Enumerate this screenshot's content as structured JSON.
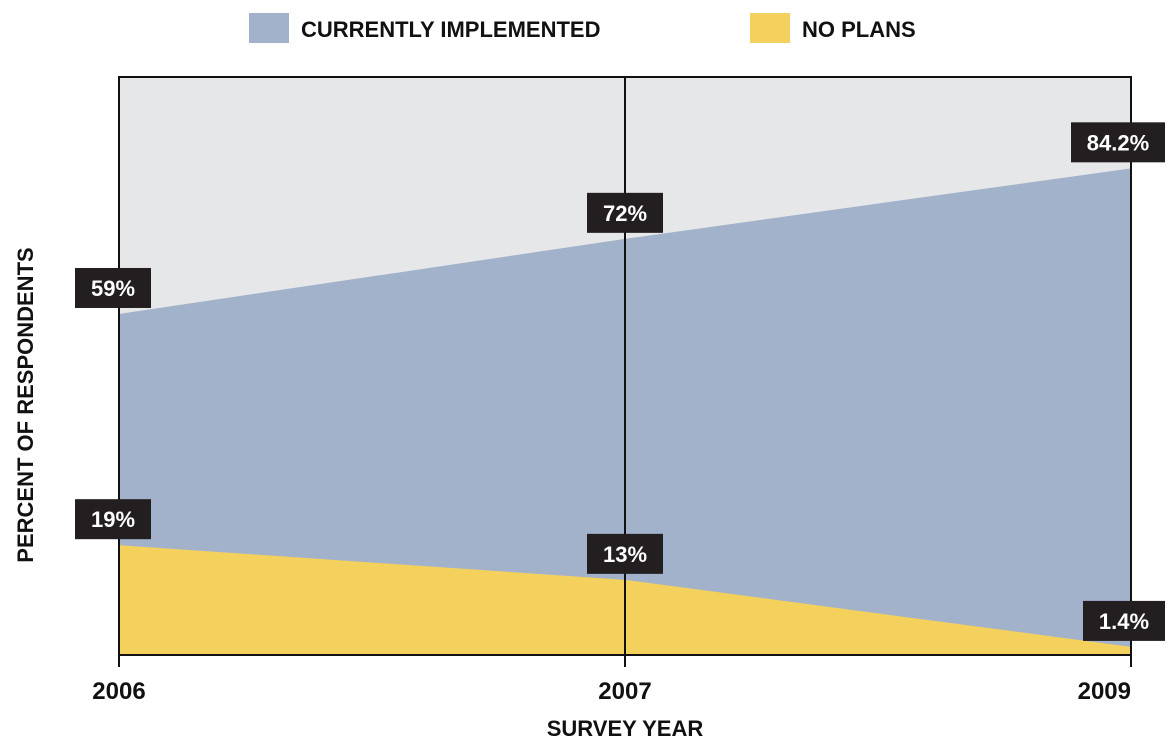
{
  "chart_data": {
    "type": "area",
    "categories": [
      "2006",
      "2007",
      "2009"
    ],
    "series": [
      {
        "name": "CURRENTLY IMPLEMENTED",
        "values": [
          59,
          72,
          84.2
        ],
        "labels": [
          "59%",
          "72%",
          "84.2%"
        ],
        "color": "#a2b2cb"
      },
      {
        "name": "NO PLANS",
        "values": [
          19,
          13,
          1.4
        ],
        "labels": [
          "19%",
          "13%",
          "1.4%"
        ],
        "color": "#f4d15c"
      }
    ],
    "title": "",
    "xlabel": "SURVEY YEAR",
    "ylabel": "PERCENT OF RESPONDENTS",
    "ylim": [
      0,
      100
    ],
    "grid": false,
    "legend_position": "top",
    "background_color": "#e6e7e8",
    "label_box_color": "#231f20"
  }
}
